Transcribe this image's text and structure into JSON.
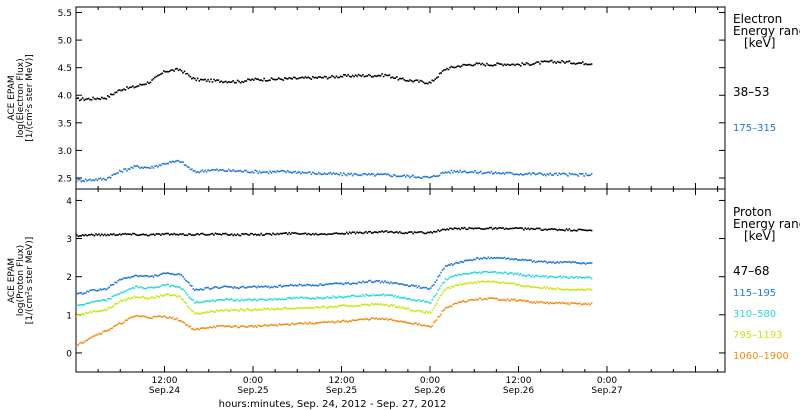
{
  "chart_data": [
    {
      "type": "scatter",
      "title": "",
      "ylabel_lines": [
        "ACE EPAM",
        "log(Electron Flux)",
        "[1/(cm²s ster MeV)]"
      ],
      "ylim": [
        2.3,
        5.6
      ],
      "yticks": [
        "2.5",
        "3.0",
        "3.5",
        "4.0",
        "4.5",
        "5.0",
        "5.5"
      ],
      "ytick_values": [
        2.5,
        3.0,
        3.5,
        4.0,
        4.5,
        5.0,
        5.5
      ],
      "legend_title_lines": [
        "Electron",
        "Energy ranges",
        "[keV]"
      ],
      "x": [
        0,
        2,
        4,
        6,
        8,
        10,
        12,
        14,
        16,
        18,
        20,
        22,
        24,
        26,
        28,
        30,
        32,
        34,
        36,
        38,
        40,
        42,
        44,
        46,
        48,
        50,
        52,
        54,
        56,
        58,
        60,
        62,
        64,
        66,
        68,
        70
      ],
      "series": [
        {
          "name": "38–53",
          "color": "#000000",
          "values": [
            3.94,
            3.95,
            3.97,
            4.12,
            4.17,
            4.26,
            4.45,
            4.48,
            4.3,
            4.28,
            4.27,
            4.26,
            4.3,
            4.3,
            4.31,
            4.32,
            4.33,
            4.34,
            4.36,
            4.37,
            4.37,
            4.38,
            4.3,
            4.27,
            4.24,
            4.49,
            4.55,
            4.58,
            4.57,
            4.58,
            4.57,
            4.59,
            4.62,
            4.62,
            4.6,
            4.59
          ]
        },
        {
          "name": "175–315",
          "color": "#1e78d2",
          "values": [
            2.47,
            2.48,
            2.5,
            2.64,
            2.72,
            2.7,
            2.78,
            2.82,
            2.62,
            2.66,
            2.65,
            2.64,
            2.63,
            2.62,
            2.63,
            2.62,
            2.6,
            2.59,
            2.58,
            2.58,
            2.57,
            2.57,
            2.55,
            2.54,
            2.52,
            2.62,
            2.64,
            2.62,
            2.61,
            2.6,
            2.59,
            2.59,
            2.58,
            2.58,
            2.57,
            2.58
          ]
        }
      ]
    },
    {
      "type": "scatter",
      "title": "",
      "ylabel_lines": [
        "ACE EPAM",
        "log(Proton Flux)",
        "[1/(cm²s ster MeV)]"
      ],
      "ylim": [
        -0.5,
        4.3
      ],
      "yticks": [
        "0",
        "1",
        "2",
        "3",
        "4"
      ],
      "ytick_values": [
        0,
        1,
        2,
        3,
        4
      ],
      "legend_title_lines": [
        "Proton",
        "Energy ranges",
        "[keV]"
      ],
      "xlabel": "hours:minutes, Sep. 24, 2012 - Sep. 27, 2012",
      "xlim": [
        0,
        88
      ],
      "xticks": [
        {
          "value": 12,
          "label_time": "12:00",
          "label_date": "Sep.24"
        },
        {
          "value": 24,
          "label_time": "0:00",
          "label_date": "Sep.25"
        },
        {
          "value": 36,
          "label_time": "12:00",
          "label_date": "Sep.25"
        },
        {
          "value": 48,
          "label_time": "0:00",
          "label_date": "Sep.26"
        },
        {
          "value": 60,
          "label_time": "12:00",
          "label_date": "Sep.26"
        },
        {
          "value": 72,
          "label_time": "0:00",
          "label_date": "Sep.27"
        }
      ],
      "x": [
        0,
        2,
        4,
        6,
        8,
        10,
        12,
        14,
        16,
        18,
        20,
        22,
        24,
        26,
        28,
        30,
        32,
        34,
        36,
        38,
        40,
        42,
        44,
        46,
        48,
        50,
        52,
        54,
        56,
        58,
        60,
        62,
        64,
        66,
        68,
        70
      ],
      "series": [
        {
          "name": "47–68",
          "color": "#000000",
          "values": [
            3.1,
            3.12,
            3.12,
            3.14,
            3.13,
            3.12,
            3.14,
            3.12,
            3.13,
            3.14,
            3.13,
            3.12,
            3.14,
            3.13,
            3.15,
            3.16,
            3.14,
            3.15,
            3.16,
            3.17,
            3.18,
            3.2,
            3.18,
            3.17,
            3.18,
            3.26,
            3.28,
            3.29,
            3.29,
            3.28,
            3.28,
            3.27,
            3.26,
            3.25,
            3.24,
            3.24
          ]
        },
        {
          "name": "115–195",
          "color": "#1e78d2",
          "values": [
            1.55,
            1.65,
            1.7,
            1.95,
            2.05,
            2.02,
            2.1,
            2.08,
            1.68,
            1.72,
            1.75,
            1.73,
            1.76,
            1.75,
            1.78,
            1.8,
            1.8,
            1.82,
            1.84,
            1.86,
            1.9,
            1.88,
            1.82,
            1.76,
            1.7,
            2.3,
            2.4,
            2.48,
            2.52,
            2.5,
            2.46,
            2.42,
            2.4,
            2.4,
            2.38,
            2.37
          ]
        },
        {
          "name": "310–580",
          "color": "#2ad8d8",
          "values": [
            1.25,
            1.35,
            1.4,
            1.6,
            1.75,
            1.72,
            1.8,
            1.76,
            1.34,
            1.38,
            1.42,
            1.4,
            1.42,
            1.42,
            1.44,
            1.46,
            1.46,
            1.48,
            1.5,
            1.52,
            1.55,
            1.54,
            1.48,
            1.4,
            1.35,
            1.95,
            2.08,
            2.12,
            2.15,
            2.12,
            2.08,
            2.03,
            2.02,
            2.01,
            2.0,
            1.99
          ]
        },
        {
          "name": "795–1193",
          "color": "#c8e60a",
          "values": [
            1.0,
            1.1,
            1.15,
            1.38,
            1.5,
            1.45,
            1.55,
            1.5,
            1.05,
            1.1,
            1.15,
            1.14,
            1.16,
            1.17,
            1.18,
            1.2,
            1.21,
            1.22,
            1.25,
            1.26,
            1.3,
            1.28,
            1.22,
            1.12,
            1.08,
            1.7,
            1.82,
            1.88,
            1.9,
            1.86,
            1.8,
            1.75,
            1.72,
            1.7,
            1.68,
            1.67
          ]
        },
        {
          "name": "1060–1900",
          "color": "#f08c14",
          "values": [
            0.2,
            0.45,
            0.6,
            0.8,
            1.0,
            0.95,
            0.98,
            0.88,
            0.62,
            0.7,
            0.72,
            0.71,
            0.72,
            0.74,
            0.76,
            0.8,
            0.8,
            0.82,
            0.85,
            0.88,
            0.92,
            0.9,
            0.85,
            0.78,
            0.7,
            1.2,
            1.35,
            1.42,
            1.45,
            1.42,
            1.4,
            1.35,
            1.33,
            1.32,
            1.31,
            1.3
          ]
        }
      ]
    }
  ]
}
